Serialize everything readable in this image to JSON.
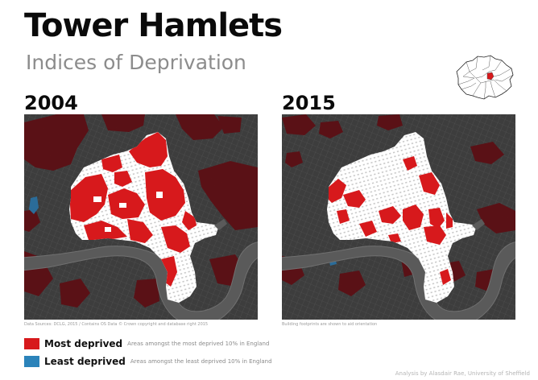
{
  "header": {
    "title": "Tower Hamlets",
    "subtitle": "Indices of Deprivation"
  },
  "maps": [
    {
      "year": "2004",
      "credit": "Data Sources: DCLG, 2015 / Contains OS Data © Crown copyright and database right 2015"
    },
    {
      "year": "2015",
      "credit": "Building footprints are shown to aid orientation"
    }
  ],
  "legend": {
    "most": {
      "label": "Most deprived",
      "description": "Areas amongst the most deprived 10% in England",
      "color": "#d7191c"
    },
    "least": {
      "label": "Least deprived",
      "description": "Areas amongst the least deprived 10% in England",
      "color": "#2b83ba"
    }
  },
  "attribution": "Analysis by Alasdair Rae, University of Sheffield",
  "colors": {
    "background_map": "#3a3a3a",
    "borough": "#ffffff",
    "river": "#6a6a6a",
    "surrounding_deprived": "#5c0f14",
    "inset_highlight": "#d7191c"
  }
}
